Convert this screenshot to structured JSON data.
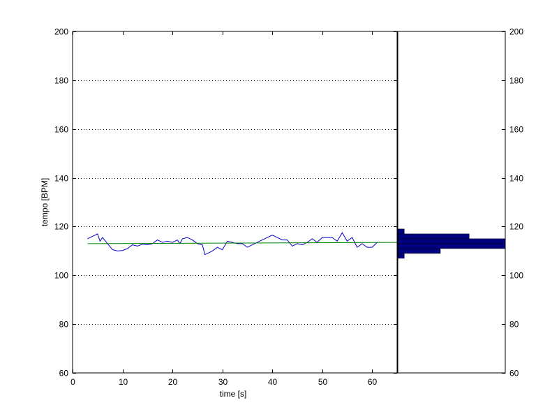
{
  "chart_data": [
    {
      "type": "line",
      "xlabel": "time [s]",
      "ylabel": "tempo [BPM]",
      "xlim": [
        0,
        65
      ],
      "ylim": [
        60,
        200
      ],
      "x_ticks": [
        0,
        10,
        20,
        30,
        40,
        50,
        60
      ],
      "y_ticks": [
        60,
        80,
        100,
        120,
        140,
        160,
        180,
        200
      ],
      "grid": "horizontal dotted",
      "colors": {
        "tempo": "#0000cc",
        "mean": "#008000",
        "axes": "#000000"
      },
      "series": [
        {
          "x": [
            3,
            4,
            5,
            5.5,
            6,
            7,
            8,
            9,
            10,
            11,
            12,
            13,
            14,
            15,
            16,
            17,
            18,
            19,
            20,
            21,
            21.5,
            22,
            23,
            24,
            25,
            26,
            26.5,
            27,
            28,
            29,
            30,
            31,
            32,
            33,
            34,
            35,
            36,
            37,
            38,
            39,
            40,
            41,
            42,
            43,
            44,
            45,
            46,
            47,
            48,
            49,
            50,
            51,
            52,
            53,
            54,
            55,
            56,
            57,
            58,
            59,
            60,
            61
          ],
          "y": [
            115,
            116,
            117,
            114,
            115.5,
            113,
            110.5,
            110,
            110.2,
            111,
            112.5,
            112,
            112.8,
            112.5,
            113,
            114.5,
            113.5,
            114,
            113.5,
            114.5,
            113,
            115,
            115.5,
            114.5,
            113,
            112.5,
            108.5,
            109,
            110,
            111.5,
            110.5,
            114,
            113.5,
            113,
            113,
            111.5,
            112.5,
            113.5,
            114.5,
            115.5,
            116.5,
            115.5,
            114.5,
            114.5,
            112,
            113,
            112.5,
            113.5,
            115,
            113.5,
            115.5,
            115.5,
            115.5,
            114,
            117.5,
            114,
            115.5,
            111.5,
            113,
            111.5,
            111.5,
            113.5
          ]
        },
        {
          "x": [
            3,
            65
          ],
          "y": [
            113,
            113.5
          ]
        }
      ]
    },
    {
      "type": "bar",
      "orientation": "horizontal",
      "y_ticks": [
        60,
        80,
        100,
        120,
        140,
        160,
        180,
        200
      ],
      "ylim": [
        60,
        200
      ],
      "y_axis_position": "right",
      "color": "#000080",
      "bins": [
        {
          "y0": 107,
          "y1": 109,
          "value": 1
        },
        {
          "y0": 109,
          "y1": 111,
          "value": 6
        },
        {
          "y0": 111,
          "y1": 113,
          "value": 15
        },
        {
          "y0": 113,
          "y1": 115,
          "value": 15
        },
        {
          "y0": 115,
          "y1": 117,
          "value": 10
        },
        {
          "y0": 117,
          "y1": 119,
          "value": 1
        }
      ],
      "xmax": 15
    }
  ]
}
